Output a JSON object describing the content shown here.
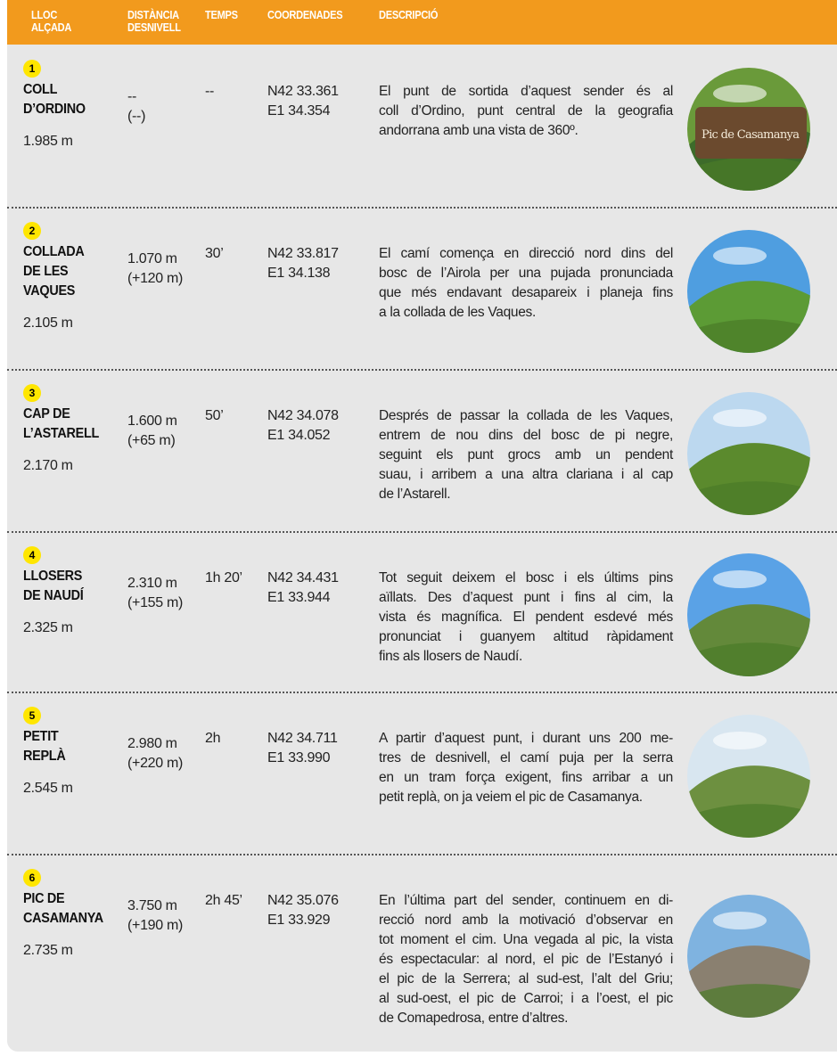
{
  "header": {
    "columns": [
      [
        "LLOC",
        "ALÇADA"
      ],
      [
        "DISTÀNCIA",
        "DESNIVELL"
      ],
      [
        "TEMPS"
      ],
      [
        "COORDENADES"
      ],
      [
        "DESCRIPCIÓ"
      ]
    ]
  },
  "rows": [
    {
      "number": "1",
      "name": [
        "COLL",
        "D’ORDINO"
      ],
      "altitude": "1.985 m",
      "distance": "--",
      "elevation": "(--)",
      "time": "--",
      "coords": [
        "N42 33.361",
        "E1 34.354"
      ],
      "description": [
        "El punt de sortida d’aquest sender és al",
        "coll d’Ordino, punt central de la geografia",
        "andorrana amb una vista de 360º."
      ],
      "photo": "Pic de Casamanya"
    },
    {
      "number": "2",
      "name": [
        "COLLADA",
        "DE LES",
        "VAQUES"
      ],
      "altitude": "2.105 m",
      "distance": "1.070 m",
      "elevation": "(+120 m)",
      "time": "30’",
      "coords": [
        "N42 33.817",
        "E1 34.138"
      ],
      "description": [
        "El camí comença en direcció nord dins del",
        "bosc de l’Airola per una pujada pronunciada",
        "que més endavant desapareix i planeja fins",
        "a la collada de les Vaques."
      ]
    },
    {
      "number": "3",
      "name": [
        "CAP DE",
        "L’ASTARELL"
      ],
      "altitude": "2.170 m",
      "distance": "1.600 m",
      "elevation": "(+65 m)",
      "time": "50’",
      "coords": [
        "N42 34.078",
        "E1 34.052"
      ],
      "description": [
        "Després de passar la collada de les Vaques,",
        "entrem de nou dins del bosc de pi negre,",
        "seguint els punt grocs amb un pendent",
        "suau, i arribem a una altra clariana i al cap",
        "de l’Astarell."
      ]
    },
    {
      "number": "4",
      "name": [
        "LLOSERS",
        "DE NAUDÍ"
      ],
      "altitude": "2.325 m",
      "distance": "2.310 m",
      "elevation": "(+155 m)",
      "time": "1h 20’",
      "coords": [
        "N42 34.431",
        "E1 33.944"
      ],
      "description": [
        "Tot seguit deixem el bosc i els últims pins",
        "aïllats. Des d’aquest punt i fins al cim, la",
        "vista és magnífica. El pendent esdevé més",
        "pronunciat i guanyem altitud ràpidament",
        "fins als llosers de Naudí."
      ]
    },
    {
      "number": "5",
      "name": [
        "PETIT",
        "REPLÀ"
      ],
      "altitude": "2.545 m",
      "distance": "2.980 m",
      "elevation": "(+220 m)",
      "time": "2h",
      "coords": [
        "N42 34.711",
        "E1 33.990"
      ],
      "description": [
        "A partir d’aquest punt, i durant uns 200 me-",
        "tres de desnivell, el camí puja per la serra",
        "en un tram força exigent, fins arribar a un",
        "petit replà, on ja veiem el pic de Casamanya."
      ]
    },
    {
      "number": "6",
      "name": [
        "PIC DE",
        "CASAMANYA"
      ],
      "altitude": "2.735 m",
      "distance": "3.750 m",
      "elevation": "(+190 m)",
      "time": "2h 45’",
      "coords": [
        "N42 35.076",
        "E1 33.929"
      ],
      "description": [
        "En l’última part del sender, continuem en di-",
        "recció nord amb la motivació d’observar en",
        "tot moment el cim. Una vegada al pic, la vista",
        "és espectacular: al nord, el pic de l’Estanyó i",
        "el pic de la Serrera; al sud-est, l’alt del Griu;",
        "al sud-oest, el pic de Carroi; i a l’oest, el pic",
        "de Comapedrosa, entre d’altres."
      ]
    }
  ]
}
